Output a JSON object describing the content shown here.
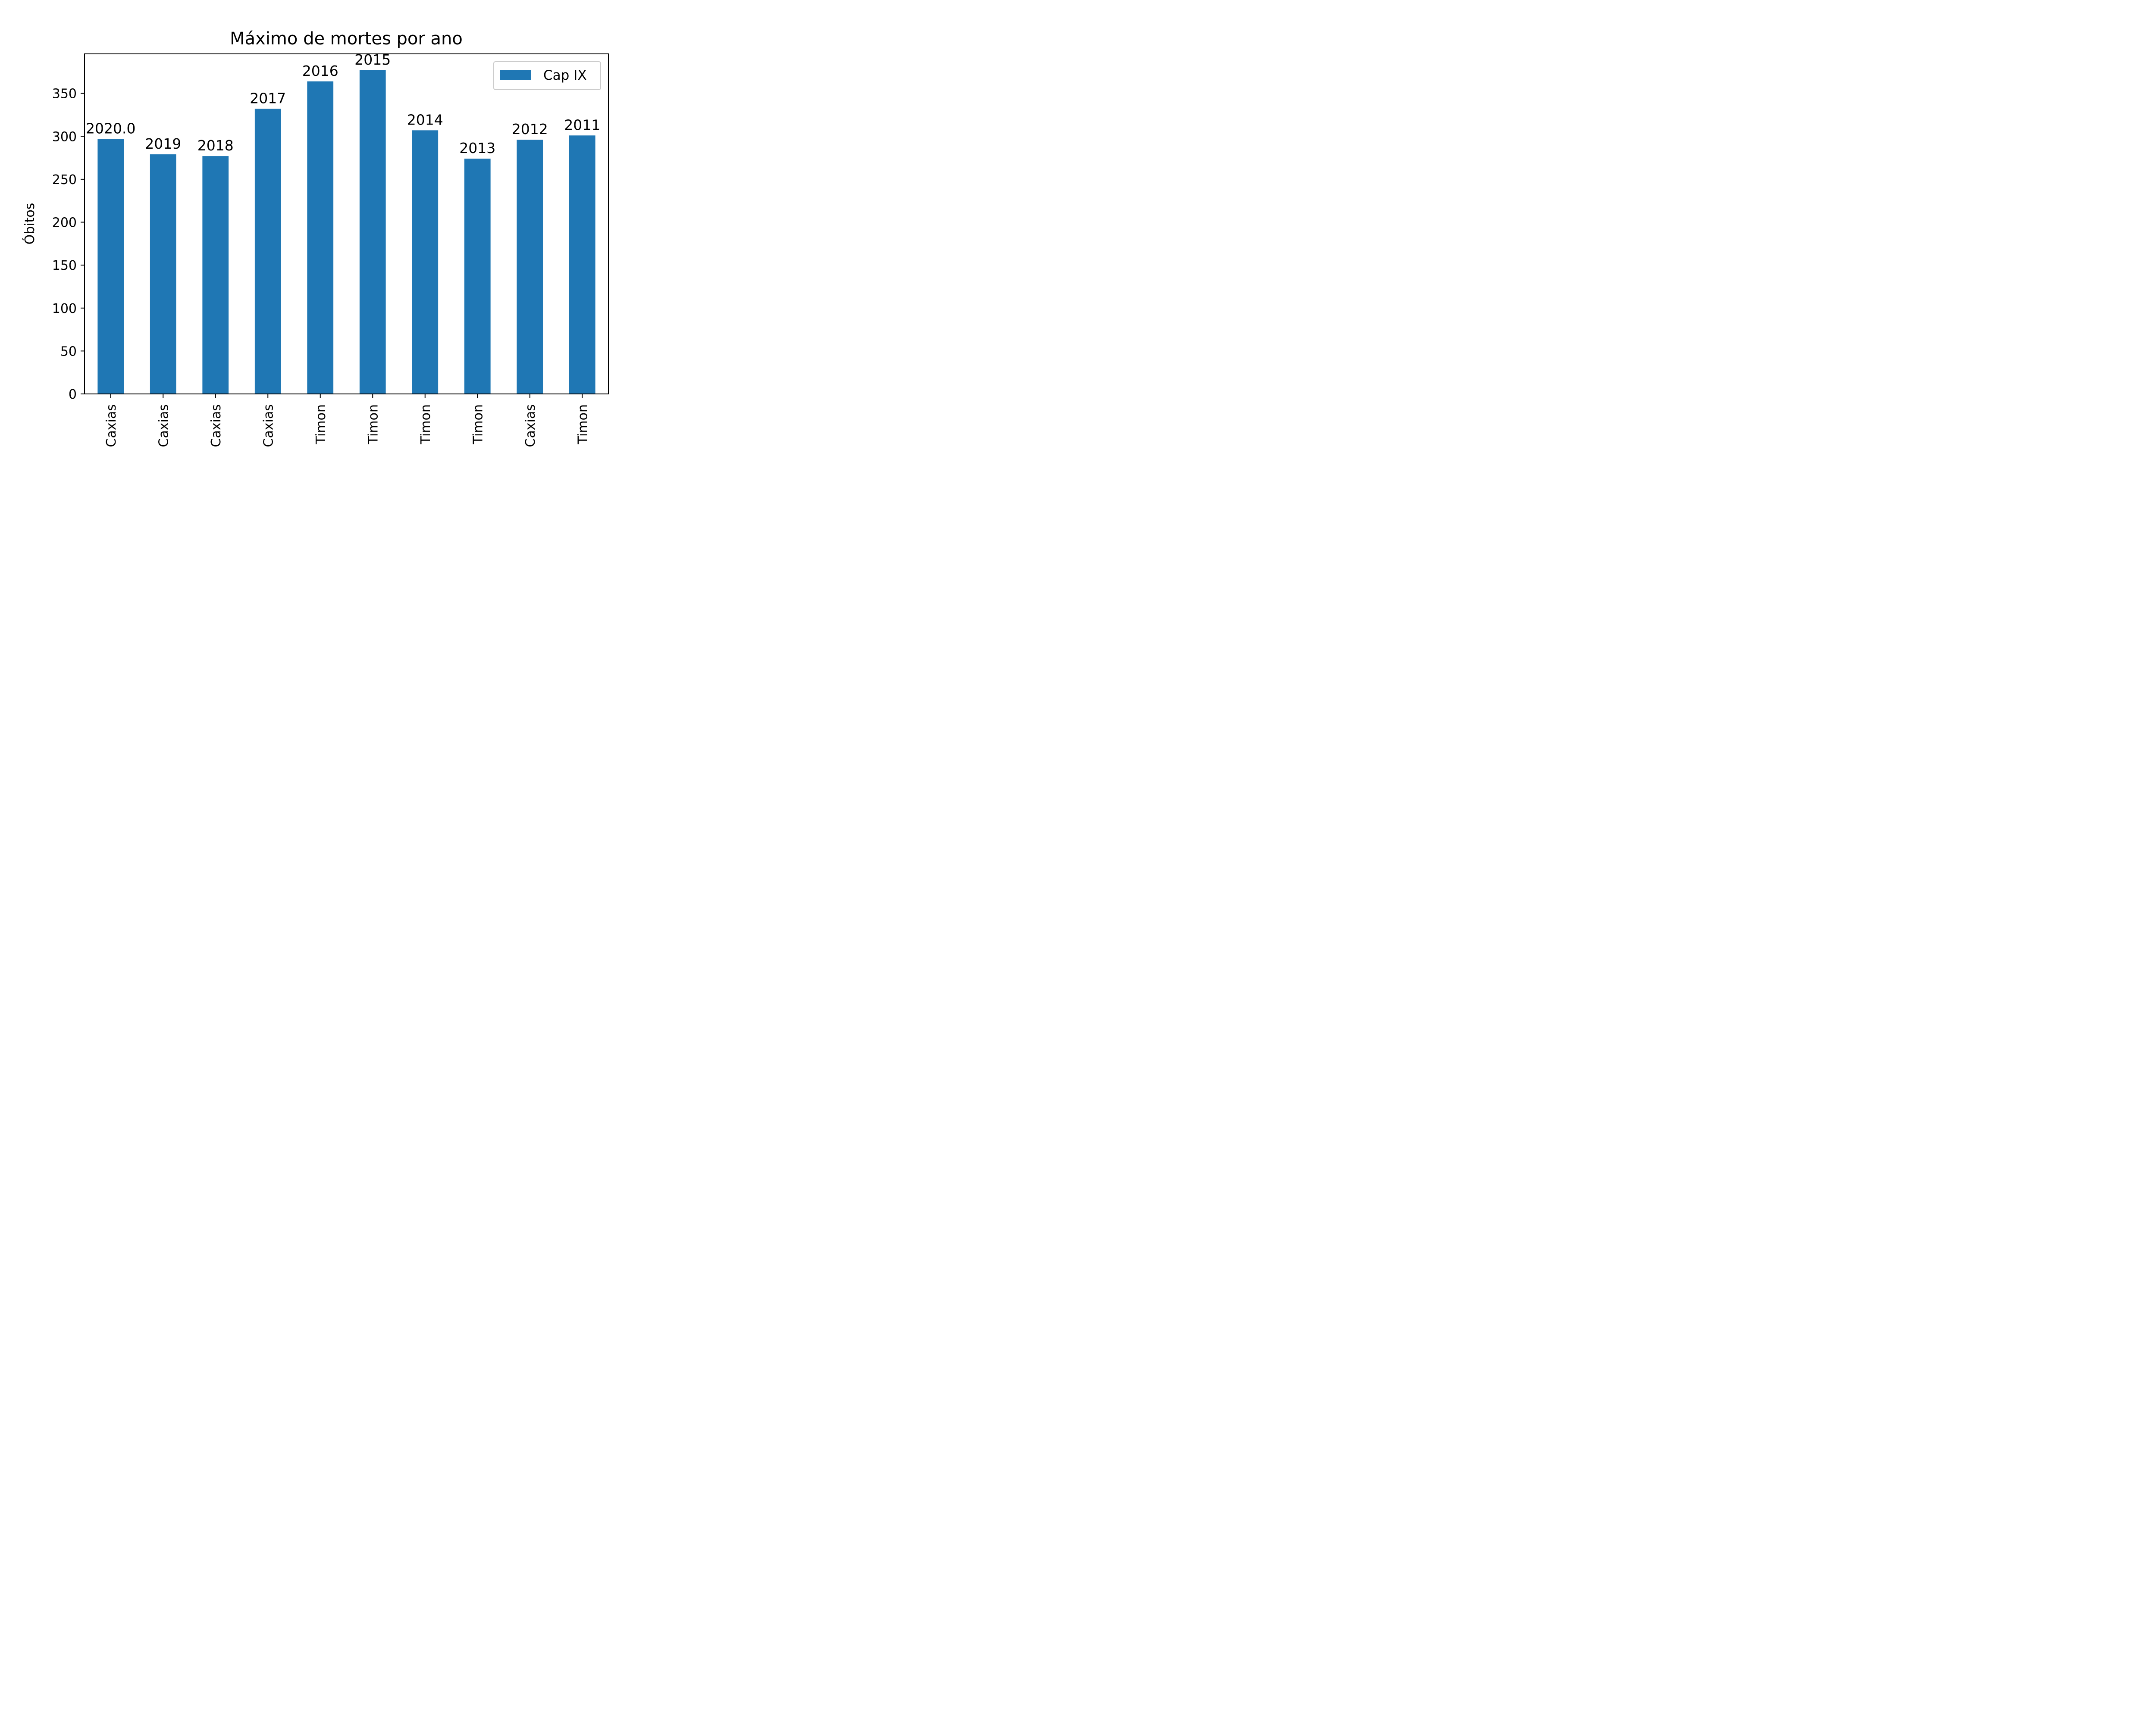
{
  "chart_data": {
    "type": "bar",
    "title": "Máximo de mortes por ano",
    "xlabel": "",
    "ylabel": "Óbitos",
    "categories": [
      "Caxias",
      "Caxias",
      "Caxias",
      "Caxias",
      "Timon",
      "Timon",
      "Timon",
      "Timon",
      "Caxias",
      "Timon"
    ],
    "series": [
      {
        "name": "Cap IX",
        "values": [
          297,
          279,
          277,
          332,
          364,
          377,
          307,
          274,
          296,
          301
        ],
        "color": "#1f77b4"
      }
    ],
    "bar_labels": [
      "2020.0",
      "2019",
      "2018",
      "2017",
      "2016",
      "2015",
      "2014",
      "2013",
      "2012",
      "2011"
    ],
    "ylim": [
      0,
      396
    ],
    "yticks": [
      0,
      50,
      100,
      150,
      200,
      250,
      300,
      350
    ],
    "grid": false,
    "legend_position": "top-right"
  }
}
